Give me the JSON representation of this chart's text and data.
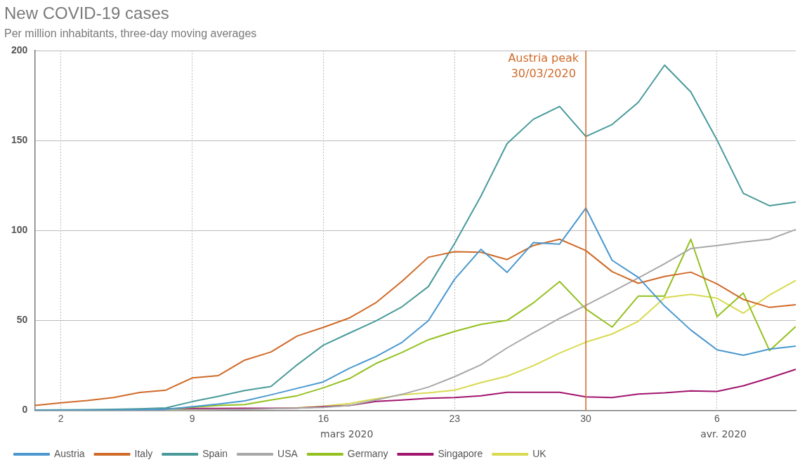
{
  "chart_data": {
    "type": "line",
    "title": "New COVID-19 cases",
    "subtitle": "Per million inhabitants, three-day moving averages",
    "categories": [
      null,
      "2",
      null,
      null,
      null,
      null,
      "9",
      null,
      null,
      null,
      null,
      "16",
      null,
      null,
      null,
      null,
      "23",
      null,
      null,
      null,
      null,
      "30",
      null,
      null,
      null,
      null,
      "6",
      null,
      null,
      null
    ],
    "ylim": [
      0,
      200
    ],
    "yticks": [
      0,
      50,
      100,
      150,
      200
    ],
    "grid": true,
    "legend": "bottom",
    "marker": "none",
    "line_style": "solid",
    "annotations": [
      "mars 2020",
      "avr. 2020"
    ],
    "ref_lines": [
      {
        "axis": "x",
        "value": "30",
        "label": "Austria peak 30/03/2020",
        "color": "#d06a28"
      }
    ],
    "series": [
      {
        "name": "Austria",
        "color": "#4a98cf",
        "values": [
          0,
          0,
          0,
          0.1,
          0.3,
          0.6,
          2.0,
          3.5,
          5.2,
          8.6,
          12.2,
          15.8,
          23.4,
          29.9,
          37.8,
          49.8,
          72.9,
          89.5,
          76.7,
          93.2,
          92.4,
          112.4,
          83.4,
          73.9,
          58.0,
          44.6,
          33.6,
          30.6,
          34.0,
          35.7
        ]
      },
      {
        "name": "Italy",
        "color": "#d06a28",
        "values": [
          2.7,
          4.2,
          5.4,
          7.1,
          9.9,
          11.2,
          18.0,
          19.3,
          27.9,
          32.4,
          41.3,
          46.1,
          51.4,
          59.8,
          71.8,
          85.1,
          88.2,
          87.9,
          83.8,
          91.6,
          95.1,
          88.8,
          77.1,
          70.6,
          74.4,
          76.8,
          70.3,
          61.6,
          57.2,
          58.7
        ]
      },
      {
        "name": "Spain",
        "color": "#4a9a9a",
        "values": [
          0.2,
          0.3,
          0.4,
          0.5,
          0.8,
          1.3,
          4.8,
          7.8,
          11.0,
          13.2,
          25.3,
          36.2,
          43.0,
          49.7,
          57.6,
          68.8,
          92.8,
          119.0,
          148.3,
          161.8,
          168.9,
          152.2,
          158.9,
          171.2,
          191.9,
          177.0,
          150.2,
          120.6,
          113.7,
          115.8
        ]
      },
      {
        "name": "USA",
        "color": "#a8a8a8",
        "values": [
          0,
          0,
          0,
          0,
          0.1,
          0.2,
          0.3,
          0.4,
          0.5,
          0.8,
          1.2,
          1.6,
          2.7,
          5.7,
          8.9,
          12.9,
          18.7,
          25.3,
          34.7,
          43.0,
          51.1,
          58.4,
          65.9,
          73.6,
          81.5,
          89.9,
          91.6,
          93.5,
          95.1,
          100.5
        ]
      },
      {
        "name": "Germany",
        "color": "#94c11f",
        "values": [
          null,
          null,
          null,
          null,
          null,
          0.5,
          1.7,
          2.7,
          3.2,
          5.7,
          8.1,
          12.5,
          17.7,
          26.0,
          32.2,
          39.2,
          43.9,
          47.8,
          50.0,
          59.7,
          71.6,
          56.3,
          46.3,
          63.5,
          63.5,
          95.1,
          52.1,
          65.2,
          33.2,
          46.6
        ]
      },
      {
        "name": "Singapore",
        "color": "#a0156e",
        "values": [
          null,
          null,
          null,
          null,
          null,
          0.8,
          1.0,
          1.0,
          1.1,
          1.1,
          1.2,
          2.0,
          2.7,
          4.9,
          5.7,
          6.7,
          7.1,
          8.1,
          10.0,
          10.0,
          10.0,
          7.5,
          7.1,
          9.0,
          9.7,
          10.8,
          10.5,
          13.6,
          18.0,
          22.8
        ]
      },
      {
        "name": "UK",
        "color": "#d8da50",
        "values": [
          null,
          null,
          null,
          null,
          null,
          0.1,
          0.2,
          0.4,
          0.6,
          0.9,
          1.4,
          2.3,
          3.8,
          6.4,
          8.6,
          9.7,
          11.2,
          15.4,
          19.0,
          24.8,
          31.8,
          37.9,
          42.4,
          49.5,
          62.6,
          64.5,
          62.3,
          54.0,
          64.1,
          72.2
        ]
      }
    ]
  }
}
